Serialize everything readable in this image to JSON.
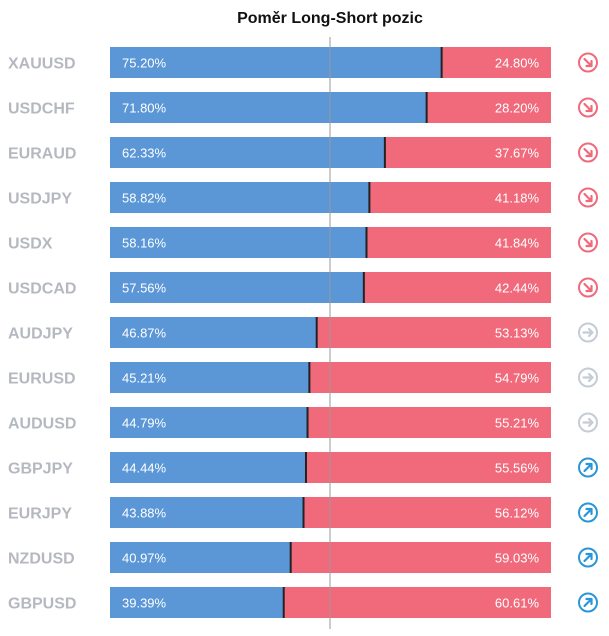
{
  "chart_data": {
    "type": "bar",
    "title": "Poměr Long-Short pozic",
    "categories": [
      "XAUUSD",
      "USDCHF",
      "EURAUD",
      "USDJPY",
      "USDX",
      "USDCAD",
      "AUDJPY",
      "EURUSD",
      "AUDUSD",
      "GBPJPY",
      "EURJPY",
      "NZDUSD",
      "GBPUSD"
    ],
    "series": [
      {
        "values": [
          75.2,
          71.8,
          62.33,
          58.82,
          58.16,
          57.56,
          46.87,
          45.21,
          44.79,
          44.44,
          43.88,
          40.97,
          39.39
        ],
        "labels": [
          "75.20%",
          "71.80%",
          "62.33%",
          "58.82%",
          "58.16%",
          "57.56%",
          "46.87%",
          "45.21%",
          "44.79%",
          "44.44%",
          "43.88%",
          "40.97%",
          "39.39%"
        ]
      },
      {
        "values": [
          24.8,
          28.2,
          37.67,
          41.18,
          41.84,
          42.44,
          53.13,
          54.79,
          55.21,
          55.56,
          56.12,
          59.03,
          60.61
        ],
        "labels": [
          "24.80%",
          "28.20%",
          "37.67%",
          "41.18%",
          "41.84%",
          "42.44%",
          "53.13%",
          "54.79%",
          "55.21%",
          "55.56%",
          "56.12%",
          "59.03%",
          "60.61%"
        ]
      }
    ],
    "signals": [
      "down",
      "down",
      "down",
      "down",
      "down",
      "down",
      "neutral",
      "neutral",
      "neutral",
      "up",
      "up",
      "up",
      "up"
    ],
    "ylim": [
      0,
      100
    ],
    "colors": {
      "long": "#5b97d6",
      "short": "#f06a7c",
      "divider": "#222222",
      "center_line": "#9a9a9a",
      "signal_down": "#f06a7c",
      "signal_neutral": "#c4ccd6",
      "signal_up": "#2a96d8"
    },
    "signal_icons": {
      "down": "arrow-down-right-icon",
      "neutral": "arrow-right-icon",
      "up": "arrow-up-right-icon"
    }
  }
}
